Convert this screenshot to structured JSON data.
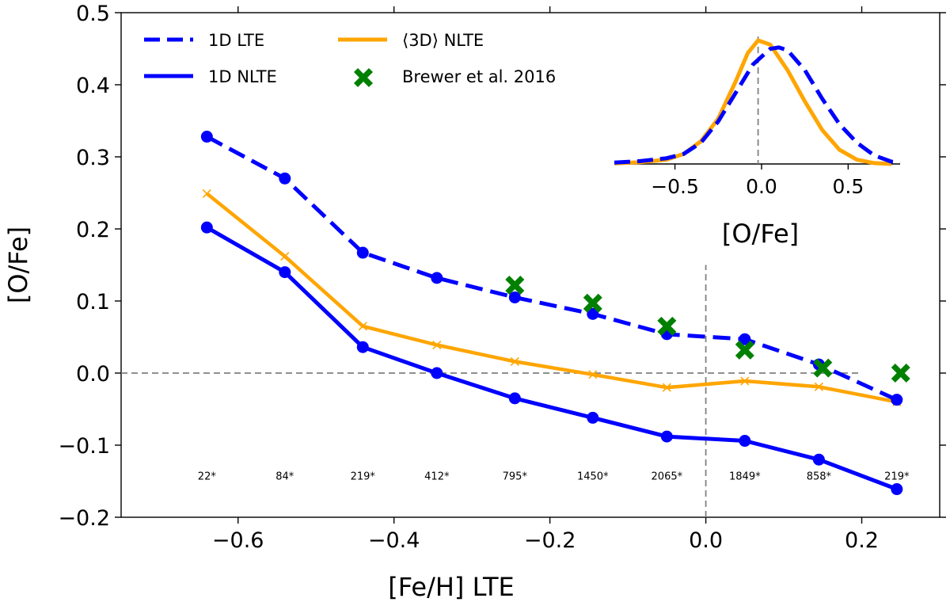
{
  "chart_data": [
    {
      "id": "main",
      "type": "line",
      "xlabel": "[Fe/H] LTE",
      "ylabel": "[O/Fe]",
      "xlim": [
        -0.75,
        0.3
      ],
      "ylim": [
        -0.2,
        0.5
      ],
      "xticks": [
        -0.6,
        -0.4,
        -0.2,
        0.0,
        0.2
      ],
      "xtick_labels": [
        "−0.6",
        "−0.4",
        "−0.2",
        "0.0",
        "0.2"
      ],
      "yticks": [
        -0.2,
        -0.1,
        0.0,
        0.1,
        0.2,
        0.3,
        0.4,
        0.5
      ],
      "ytick_labels": [
        "−0.2",
        "−0.1",
        "0.0",
        "0.1",
        "0.2",
        "0.3",
        "0.4",
        "0.5"
      ],
      "x": [
        -0.64,
        -0.54,
        -0.44,
        -0.345,
        -0.245,
        -0.145,
        -0.05,
        0.05,
        0.145,
        0.245
      ],
      "series": [
        {
          "name": "1D LTE",
          "style": "dashed",
          "marker": "circle",
          "color": "#0000ff",
          "values": [
            0.328,
            0.27,
            0.167,
            0.132,
            0.105,
            0.082,
            0.054,
            0.047,
            0.012,
            -0.037
          ]
        },
        {
          "name": "1D NLTE",
          "style": "solid",
          "marker": "circle",
          "color": "#0000ff",
          "values": [
            0.202,
            0.14,
            0.036,
            0.0,
            -0.035,
            -0.062,
            -0.088,
            -0.094,
            -0.12,
            -0.161
          ]
        },
        {
          "name": "⟨3D⟩ NLTE",
          "style": "solid",
          "marker": "x",
          "color": "#ffa500",
          "values": [
            0.249,
            0.162,
            0.065,
            0.039,
            0.016,
            -0.002,
            -0.02,
            -0.011,
            -0.019,
            -0.04
          ]
        }
      ],
      "scatter": {
        "name": "Brewer et al. 2016",
        "marker": "X",
        "color": "#008000",
        "x": [
          -0.245,
          -0.145,
          -0.05,
          0.05,
          0.15,
          0.25
        ],
        "y": [
          0.122,
          0.097,
          0.065,
          0.032,
          0.007,
          0.0
        ]
      },
      "reference_lines": {
        "horizontal_y": 0.0,
        "horizontal_x_range": [
          -0.75,
          0.2
        ],
        "vertical_x": 0.0,
        "vertical_y_range": [
          -0.2,
          0.15
        ]
      },
      "count_labels": [
        "22*",
        "84*",
        "219*",
        "412*",
        "795*",
        "1450*",
        "2065*",
        "1849*",
        "858*",
        "219*"
      ],
      "legend": {
        "position": "top-left",
        "columns": 2,
        "entries": [
          "1D LTE",
          "⟨3D⟩ NLTE",
          "1D NLTE",
          "Brewer et al. 2016"
        ]
      }
    },
    {
      "id": "inset",
      "type": "line",
      "title": "",
      "xlabel": "[O/Fe]",
      "ylabel": "",
      "xlim": [
        -0.85,
        0.8
      ],
      "ylim": [
        0,
        4.6
      ],
      "xticks": [
        -0.5,
        0.0,
        0.5
      ],
      "xtick_labels": [
        "−0.5",
        "0.0",
        "0.5"
      ],
      "vertical_x": -0.02,
      "series": [
        {
          "name": "1D LTE distribution",
          "style": "dashed",
          "color": "#0000ff",
          "x": [
            -0.85,
            -0.7,
            -0.55,
            -0.45,
            -0.35,
            -0.25,
            -0.15,
            -0.05,
            0.05,
            0.1,
            0.15,
            0.25,
            0.35,
            0.45,
            0.55,
            0.65,
            0.75,
            0.8
          ],
          "y": [
            0.05,
            0.1,
            0.2,
            0.35,
            0.75,
            1.5,
            2.5,
            3.5,
            4.05,
            4.1,
            4.0,
            3.3,
            2.3,
            1.4,
            0.75,
            0.3,
            0.08,
            0.05
          ]
        },
        {
          "name": "⟨3D⟩ NLTE distribution",
          "style": "solid",
          "color": "#ffa500",
          "x": [
            -0.85,
            -0.7,
            -0.55,
            -0.45,
            -0.35,
            -0.25,
            -0.15,
            -0.08,
            -0.02,
            0.05,
            0.15,
            0.25,
            0.35,
            0.45,
            0.55,
            0.65,
            0.75
          ],
          "y": [
            0.02,
            0.06,
            0.15,
            0.35,
            0.8,
            1.6,
            2.9,
            3.9,
            4.35,
            4.2,
            3.3,
            2.2,
            1.2,
            0.5,
            0.15,
            0.03,
            0.0
          ]
        }
      ]
    }
  ]
}
